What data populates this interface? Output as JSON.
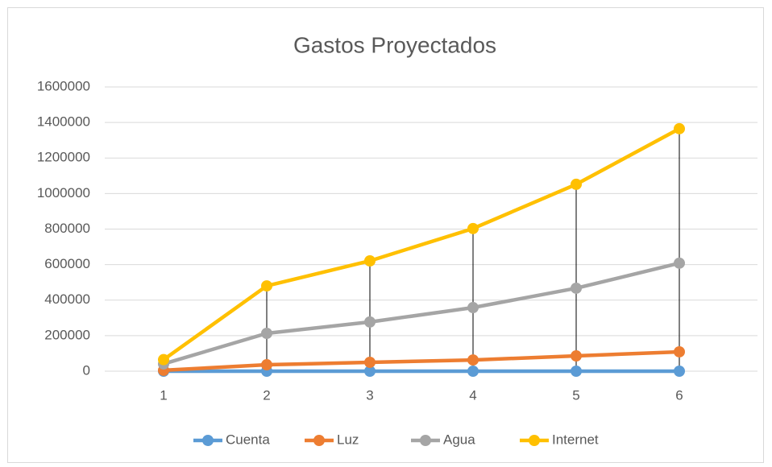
{
  "chart_data": {
    "type": "line",
    "title": "Gastos Proyectados",
    "categories": [
      "1",
      "2",
      "3",
      "4",
      "5",
      "6"
    ],
    "series": [
      {
        "name": "Cuenta",
        "color": "#5b9bd5",
        "values": [
          0,
          0,
          0,
          0,
          0,
          0
        ]
      },
      {
        "name": "Luz",
        "color": "#ed7d31",
        "values": [
          5000,
          36000,
          50000,
          63000,
          86000,
          109000
        ]
      },
      {
        "name": "Agua",
        "color": "#a5a5a5",
        "values": [
          41000,
          213000,
          277000,
          358000,
          467000,
          608000
        ]
      },
      {
        "name": "Internet",
        "color": "#ffc000",
        "values": [
          65000,
          480000,
          621000,
          803000,
          1052000,
          1365000
        ]
      }
    ],
    "ylim": [
      0,
      1600000
    ],
    "yticks": [
      0,
      200000,
      400000,
      600000,
      800000,
      1000000,
      1200000,
      1400000,
      1600000
    ],
    "grid": true,
    "drop_lines": true,
    "legend": "bottom"
  }
}
